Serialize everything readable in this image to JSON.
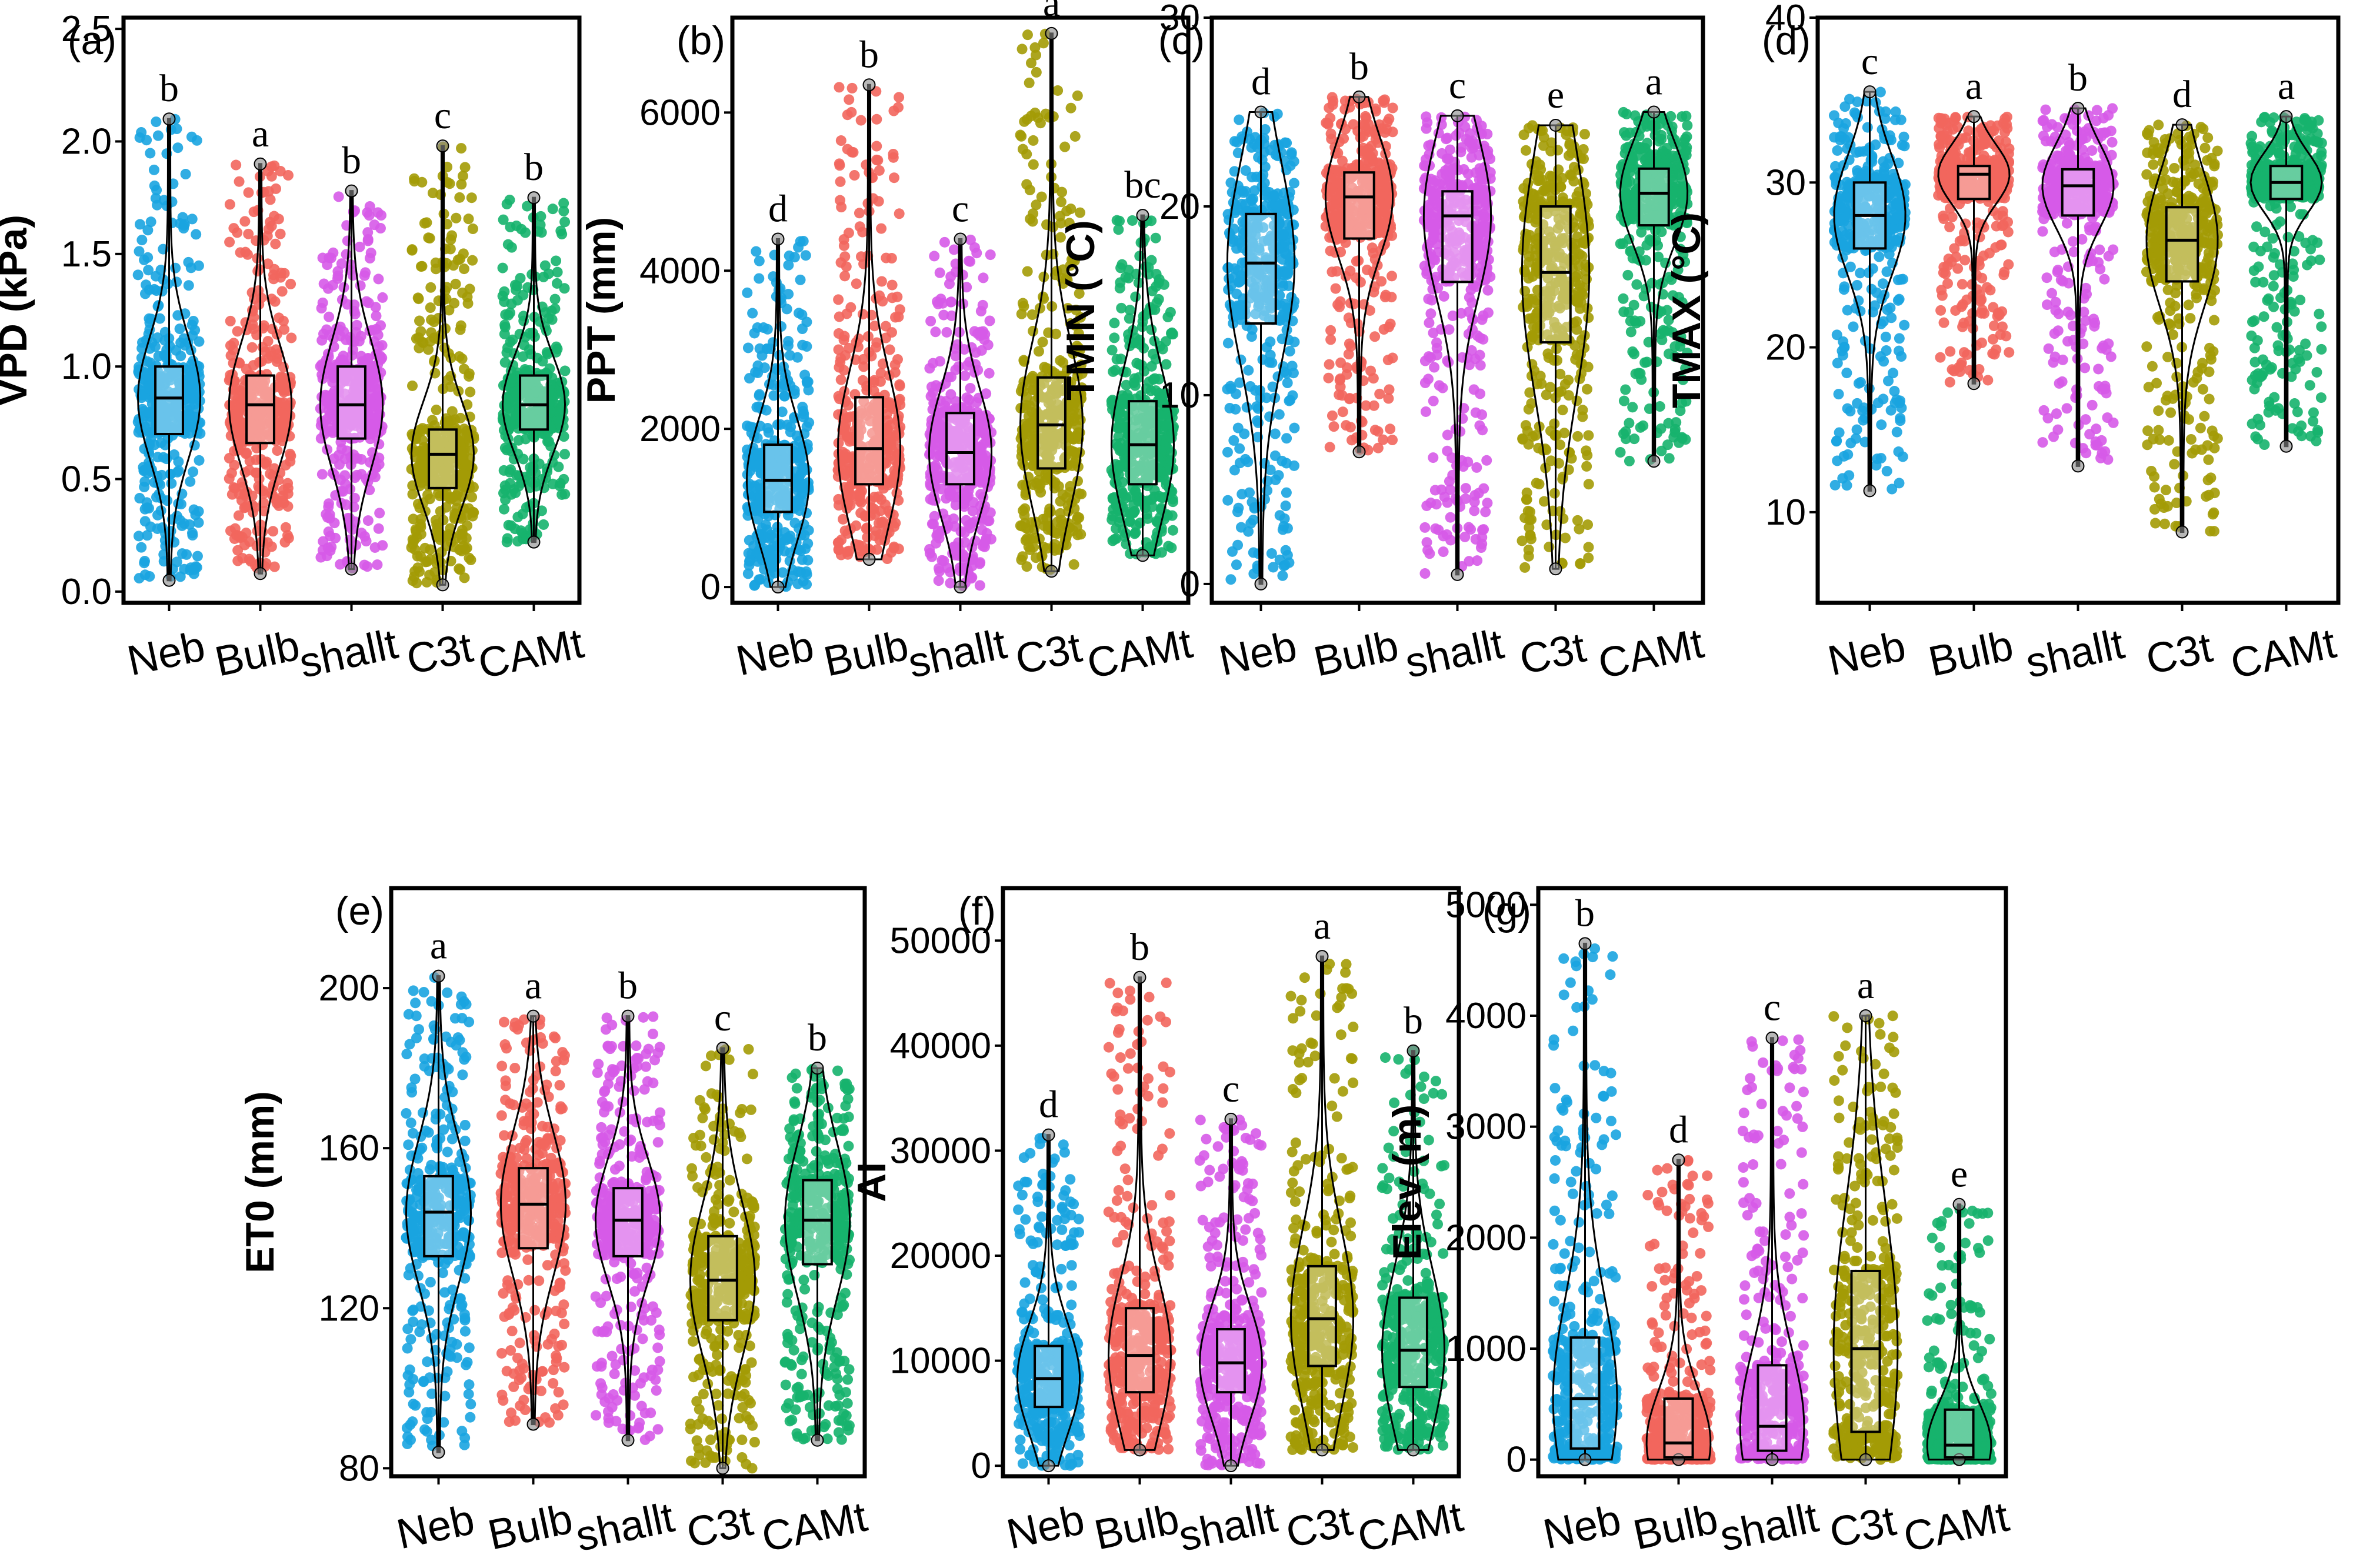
{
  "categories": [
    "Neb",
    "Bulb",
    "shallt",
    "C3t",
    "CAMt"
  ],
  "colors": [
    "#1aa4e0",
    "#f2665d",
    "#d65ae8",
    "#a39b05",
    "#16b36d"
  ],
  "chart_data": [
    {
      "panel": "(a)",
      "type": "violin+box",
      "ylabel": "VPD (kPa)",
      "ylim": [
        -0.05,
        2.55
      ],
      "yticks": [
        "0.0",
        "0.5",
        "1.0",
        "1.5",
        "2.0",
        "2.5"
      ],
      "ytick_values": [
        0,
        0.5,
        1.0,
        1.5,
        2.0,
        2.5
      ],
      "categories": [
        "Neb",
        "Bulb",
        "shallt",
        "C3t",
        "CAMt"
      ],
      "letters": [
        "b",
        "a",
        "b",
        "c",
        "b"
      ],
      "series": [
        {
          "name": "Neb",
          "min": 0.05,
          "q1": 0.7,
          "median": 0.86,
          "q3": 1.0,
          "max": 2.1
        },
        {
          "name": "Bulb",
          "min": 0.08,
          "q1": 0.66,
          "median": 0.83,
          "q3": 0.96,
          "max": 1.9
        },
        {
          "name": "shallt",
          "min": 0.1,
          "q1": 0.68,
          "median": 0.83,
          "q3": 1.0,
          "max": 1.78
        },
        {
          "name": "C3t",
          "min": 0.03,
          "q1": 0.46,
          "median": 0.61,
          "q3": 0.72,
          "max": 1.98
        },
        {
          "name": "CAMt",
          "min": 0.22,
          "q1": 0.72,
          "median": 0.83,
          "q3": 0.96,
          "max": 1.75
        }
      ]
    },
    {
      "panel": "(b)",
      "type": "violin+box",
      "ylabel": "PPT (mm)",
      "ylim": [
        -200,
        7200
      ],
      "yticks": [
        "0",
        "2000",
        "4000",
        "6000"
      ],
      "ytick_values": [
        0,
        2000,
        4000,
        6000
      ],
      "categories": [
        "Neb",
        "Bulb",
        "shallt",
        "C3t",
        "CAMt"
      ],
      "letters": [
        "d",
        "b",
        "c",
        "a",
        "bc"
      ],
      "series": [
        {
          "name": "Neb",
          "min": 0,
          "q1": 950,
          "median": 1350,
          "q3": 1800,
          "max": 4400
        },
        {
          "name": "Bulb",
          "min": 350,
          "q1": 1300,
          "median": 1750,
          "q3": 2400,
          "max": 6350
        },
        {
          "name": "shallt",
          "min": 0,
          "q1": 1300,
          "median": 1700,
          "q3": 2200,
          "max": 4400
        },
        {
          "name": "C3t",
          "min": 200,
          "q1": 1500,
          "median": 2050,
          "q3": 2650,
          "max": 7000
        },
        {
          "name": "CAMt",
          "min": 400,
          "q1": 1300,
          "median": 1800,
          "q3": 2350,
          "max": 4700
        }
      ]
    },
    {
      "panel": "(c)",
      "type": "violin+box",
      "ylabel": "TMIN (°C)",
      "ylim": [
        -1,
        30
      ],
      "yticks": [
        "0",
        "10",
        "20",
        "30"
      ],
      "ytick_values": [
        0,
        10,
        20,
        30
      ],
      "categories": [
        "Neb",
        "Bulb",
        "shallt",
        "C3t",
        "CAMt"
      ],
      "letters": [
        "d",
        "b",
        "c",
        "e",
        "a"
      ],
      "series": [
        {
          "name": "Neb",
          "min": 0,
          "q1": 13.8,
          "median": 17.0,
          "q3": 19.6,
          "max": 25.0
        },
        {
          "name": "Bulb",
          "min": 7.0,
          "q1": 18.3,
          "median": 20.5,
          "q3": 21.8,
          "max": 25.8
        },
        {
          "name": "shallt",
          "min": 0.5,
          "q1": 16.0,
          "median": 19.5,
          "q3": 20.8,
          "max": 24.8
        },
        {
          "name": "C3t",
          "min": 0.8,
          "q1": 12.8,
          "median": 16.5,
          "q3": 20.0,
          "max": 24.3
        },
        {
          "name": "CAMt",
          "min": 6.5,
          "q1": 19.0,
          "median": 20.7,
          "q3": 22.0,
          "max": 25.0
        }
      ]
    },
    {
      "panel": "(d)",
      "type": "violin+box",
      "ylabel": "TMAX (°C)",
      "ylim": [
        4.5,
        40
      ],
      "yticks": [
        "10",
        "20",
        "30",
        "40"
      ],
      "ytick_values": [
        10,
        20,
        30,
        40
      ],
      "categories": [
        "Neb",
        "Bulb",
        "shallt",
        "C3t",
        "CAMt"
      ],
      "letters": [
        "c",
        "a",
        "b",
        "d",
        "a"
      ],
      "series": [
        {
          "name": "Neb",
          "min": 11.3,
          "q1": 26.0,
          "median": 28.0,
          "q3": 30.0,
          "max": 35.5
        },
        {
          "name": "Bulb",
          "min": 17.8,
          "q1": 29.0,
          "median": 30.5,
          "q3": 31.0,
          "max": 34.0
        },
        {
          "name": "shallt",
          "min": 12.8,
          "q1": 28.0,
          "median": 29.8,
          "q3": 30.8,
          "max": 34.5
        },
        {
          "name": "C3t",
          "min": 8.8,
          "q1": 24.0,
          "median": 26.5,
          "q3": 28.5,
          "max": 33.5
        },
        {
          "name": "CAMt",
          "min": 14.0,
          "q1": 29.0,
          "median": 30.0,
          "q3": 31.0,
          "max": 34.0
        }
      ]
    },
    {
      "panel": "(e)",
      "type": "violin+box",
      "ylabel": "ET0 (mm)",
      "ylim": [
        78,
        225
      ],
      "yticks": [
        "80",
        "120",
        "160",
        "200"
      ],
      "ytick_values": [
        80,
        120,
        160,
        200
      ],
      "categories": [
        "Neb",
        "Bulb",
        "shallt",
        "C3t",
        "CAMt"
      ],
      "letters": [
        "a",
        "a",
        "b",
        "c",
        "b"
      ],
      "series": [
        {
          "name": "Neb",
          "min": 84,
          "q1": 133,
          "median": 144,
          "q3": 153,
          "max": 203
        },
        {
          "name": "Bulb",
          "min": 91,
          "q1": 135,
          "median": 146,
          "q3": 155,
          "max": 193
        },
        {
          "name": "shallt",
          "min": 87,
          "q1": 133,
          "median": 142,
          "q3": 150,
          "max": 193
        },
        {
          "name": "C3t",
          "min": 80,
          "q1": 117,
          "median": 127,
          "q3": 138,
          "max": 185
        },
        {
          "name": "CAMt",
          "min": 87,
          "q1": 131,
          "median": 142,
          "q3": 152,
          "max": 180
        }
      ]
    },
    {
      "panel": "(f)",
      "type": "violin+box",
      "ylabel": "AI",
      "ylim": [
        -1000,
        55000
      ],
      "yticks": [
        "0",
        "10000",
        "20000",
        "30000",
        "40000",
        "50000"
      ],
      "ytick_values": [
        0,
        10000,
        20000,
        30000,
        40000,
        50000
      ],
      "categories": [
        "Neb",
        "Bulb",
        "shallt",
        "C3t",
        "CAMt"
      ],
      "letters": [
        "d",
        "b",
        "c",
        "a",
        "b"
      ],
      "series": [
        {
          "name": "Neb",
          "min": 0,
          "q1": 5600,
          "median": 8300,
          "q3": 11400,
          "max": 31500
        },
        {
          "name": "Bulb",
          "min": 1500,
          "q1": 7000,
          "median": 10500,
          "q3": 15000,
          "max": 46500
        },
        {
          "name": "shallt",
          "min": 0,
          "q1": 7000,
          "median": 9800,
          "q3": 13000,
          "max": 33000
        },
        {
          "name": "C3t",
          "min": 1500,
          "q1": 9500,
          "median": 14000,
          "q3": 19000,
          "max": 48500
        },
        {
          "name": "CAMt",
          "min": 1500,
          "q1": 7500,
          "median": 11000,
          "q3": 16000,
          "max": 39500
        }
      ]
    },
    {
      "panel": "(g)",
      "type": "violin+box",
      "ylabel": "Elev (m)",
      "ylim": [
        -150,
        5150
      ],
      "yticks": [
        "0",
        "1000",
        "2000",
        "3000",
        "4000",
        "5000"
      ],
      "ytick_values": [
        0,
        1000,
        2000,
        3000,
        4000,
        5000
      ],
      "categories": [
        "Neb",
        "Bulb",
        "shallt",
        "C3t",
        "CAMt"
      ],
      "letters": [
        "b",
        "d",
        "c",
        "a",
        "e"
      ],
      "series": [
        {
          "name": "Neb",
          "min": 0,
          "q1": 100,
          "median": 550,
          "q3": 1100,
          "max": 4650
        },
        {
          "name": "Bulb",
          "min": 0,
          "q1": 20,
          "median": 150,
          "q3": 550,
          "max": 2700
        },
        {
          "name": "shallt",
          "min": 0,
          "q1": 80,
          "median": 300,
          "q3": 850,
          "max": 3800
        },
        {
          "name": "C3t",
          "min": 0,
          "q1": 250,
          "median": 1000,
          "q3": 1700,
          "max": 4000
        },
        {
          "name": "CAMt",
          "min": 0,
          "q1": 20,
          "median": 130,
          "q3": 450,
          "max": 2300
        }
      ]
    }
  ]
}
